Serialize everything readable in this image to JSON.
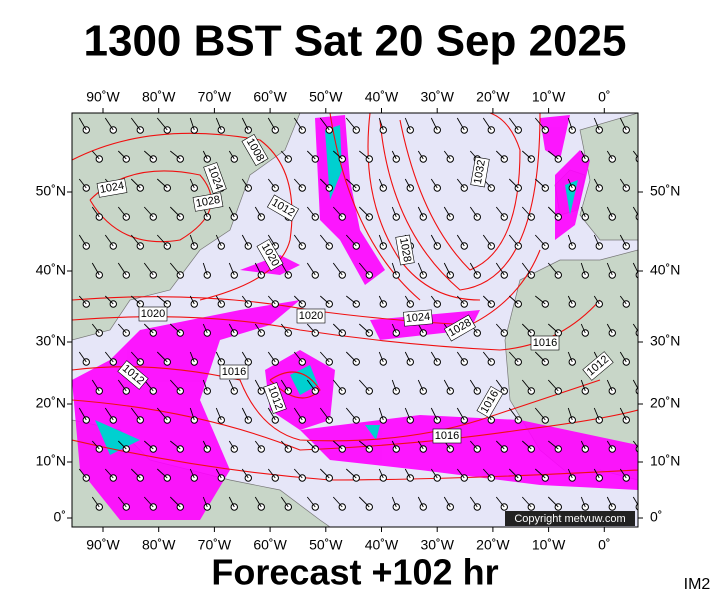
{
  "header": {
    "title": "1300 BST Sat 20 Sep 2025"
  },
  "footer": {
    "forecast": "Forecast +102 hr",
    "code": "IM2"
  },
  "map": {
    "copyright": "Copyright metvuw.com",
    "lon_ticks": [
      "90˚W",
      "80˚W",
      "70˚W",
      "60˚W",
      "50˚W",
      "40˚W",
      "30˚W",
      "20˚W",
      "10˚W",
      "0˚"
    ],
    "lat_ticks": [
      "50˚N",
      "40˚N",
      "30˚N",
      "20˚N",
      "10˚N",
      "0˚"
    ],
    "isobar_labels": [
      "1024",
      "1028",
      "1024",
      "1008",
      "1012",
      "1028",
      "1032",
      "1020",
      "1020",
      "1024",
      "1028",
      "1016",
      "1012",
      "1016",
      "1012",
      "1016",
      "1016",
      "1012",
      "1020"
    ]
  }
}
